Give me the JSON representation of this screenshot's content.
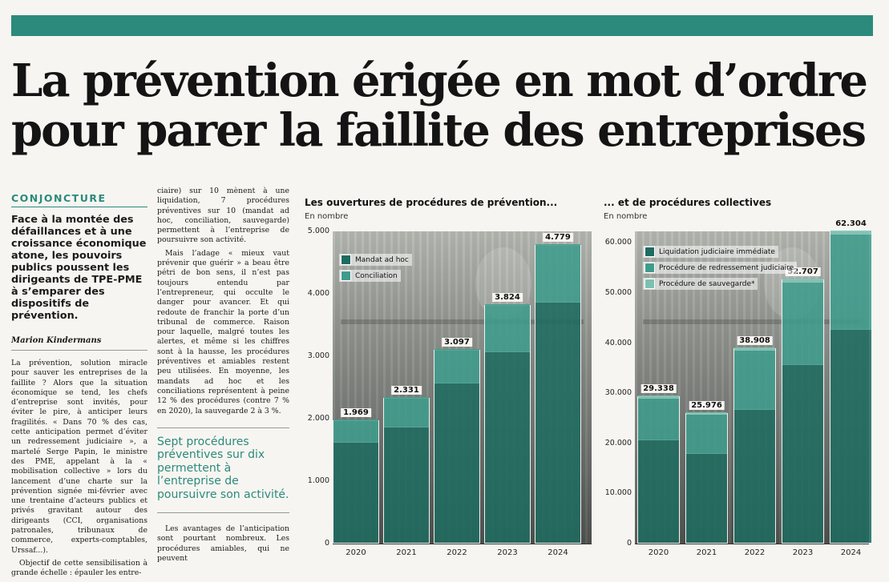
{
  "headline": {
    "line1": "La prévention érigée en mot d’ordre",
    "line2": "pour parer la faillite des entreprises"
  },
  "kicker": "CONJONCTURE",
  "chapo": "Face à la montée des défaillances et à une croissance économique atone, les pouvoirs publics poussent les dirigeants de TPE-PME à s’emparer des dispositifs de prévention.",
  "author": "Marion Kindermans",
  "col1_paragraphs": [
    "La prévention, solution miracle pour sauver les entreprises de la faillite ? Alors que la situation économique se tend, les chefs d’entreprise sont invités, pour éviter le pire, à anticiper leurs fragilités. « Dans 70 % des cas, cette anticipation permet d’éviter un redressement judiciaire », a martelé Serge Papin, le ministre des PME, appelant à la « mobilisation collective » lors du lancement d’une charte sur la prévention signée mi-février avec une trentaine d’acteurs publics et privés gravitant autour des dirigeants (CCI, organisations patronales, tribunaux de commerce, experts-comptables, Urssaf...).",
    "Objectif de cette sensibilisation à grande échelle : épauler les entre-"
  ],
  "col2_paragraphs": [
    "ciaire) sur 10 mènent à une liquidation, 7 procédures préventives sur 10 (mandat ad hoc, conciliation, sauvegarde) permettent à l’entreprise de poursuivre son activité.",
    "Mais l’adage « mieux vaut prévenir que guérir » a beau être pétri de bon sens, il n’est pas toujours entendu par l’entrepreneur, qui occulte le danger pour avancer. Et qui redoute de franchir la porte d’un tribunal de commerce. Raison pour laquelle, malgré toutes les alertes, et même si les chiffres sont à la hausse, les procédures préventives et amiables restent peu utilisées. En moyenne, les mandats ad hoc et les conciliations représentent à peine 12 % des procédures (contre 7 % en 2020), la sauvegarde 2 à 3 %."
  ],
  "pullquote": "Sept procédures préventives sur dix permettent à l’entreprise de poursuivre son activité.",
  "col2_bottom": "Les avantages de l’anticipation sont pourtant nombreux. Les procédures amiables, qui ne peuvent",
  "colors": {
    "accent": "#2b8a7c",
    "dark_teal": "#1f6b60",
    "mid_teal": "#3f9c8c",
    "light_teal": "#7cc0b2"
  },
  "chart_data": [
    {
      "type": "bar",
      "title": "Les ouvertures de procédures de prévention...",
      "unit": "En nombre",
      "categories": [
        "2020",
        "2021",
        "2022",
        "2023",
        "2024"
      ],
      "totals": [
        1969,
        2331,
        3097,
        3824,
        4779
      ],
      "total_labels": [
        "1.969",
        "2.331",
        "3.097",
        "3.824",
        "4.779"
      ],
      "series": [
        {
          "name": "Mandat ad hoc",
          "values": [
            1600,
            1850,
            2550,
            3050,
            3850
          ]
        },
        {
          "name": "Conciliation",
          "values": [
            369,
            481,
            547,
            774,
            929
          ]
        }
      ],
      "yticks": [
        "0",
        "1.000",
        "2.000",
        "3.000",
        "4.000",
        "5.000"
      ],
      "ylim": [
        0,
        5000
      ],
      "legend": "top-left"
    },
    {
      "type": "bar",
      "title": "... et de procédures collectives",
      "unit": "En nombre",
      "categories": [
        "2020",
        "2021",
        "2022",
        "2023",
        "2024"
      ],
      "totals": [
        29338,
        25976,
        38908,
        52707,
        62304
      ],
      "total_labels": [
        "29.338",
        "25.976",
        "38.908",
        "52.707",
        "62.304"
      ],
      "series": [
        {
          "name": "Liquidation judiciaire immédiate",
          "values": [
            20500,
            17800,
            26500,
            35500,
            42500
          ]
        },
        {
          "name": "Procédure de redressement judiciaire",
          "values": [
            8300,
            7700,
            11800,
            16400,
            19000
          ]
        },
        {
          "name": "Procédure de sauvegarde*",
          "values": [
            538,
            476,
            608,
            807,
            804
          ]
        }
      ],
      "yticks": [
        "0",
        "10.000",
        "20.000",
        "30.000",
        "40.000",
        "50.000",
        "60.000"
      ],
      "ylim": [
        0,
        62304
      ],
      "legend": "top-left"
    }
  ]
}
